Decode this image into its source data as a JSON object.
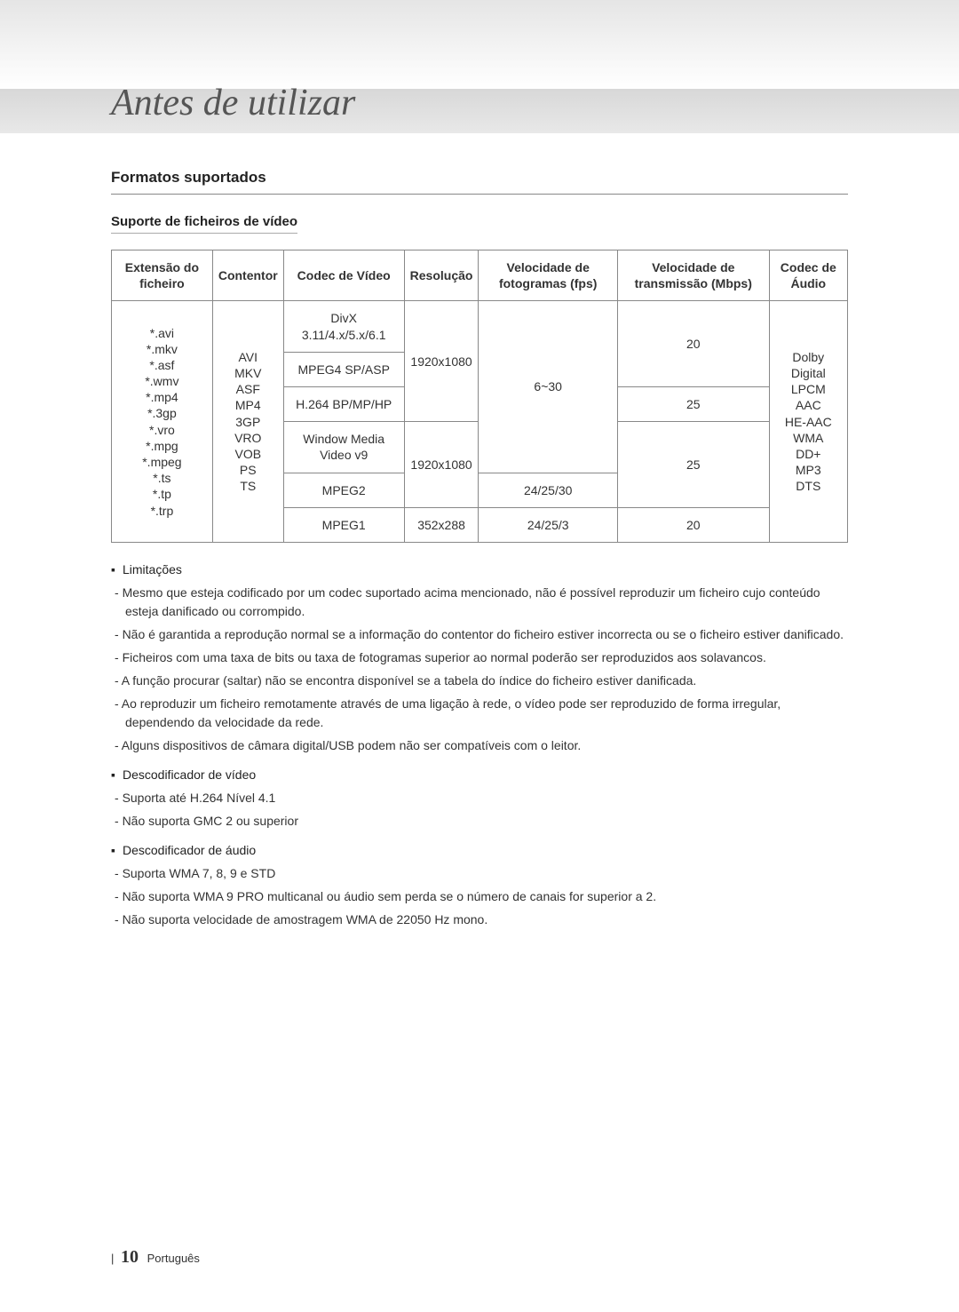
{
  "page_title": "Antes de utilizar",
  "section_title": "Formatos suportados",
  "subsection_title": "Suporte de ficheiros de vídeo",
  "table": {
    "headers": {
      "col1": "Extensão do ficheiro",
      "col2": "Contentor",
      "col3": "Codec de Vídeo",
      "col4": "Resolução",
      "col5": "Velocidade de fotogramas (fps)",
      "col6": "Velocidade de transmissão (Mbps)",
      "col7": "Codec de Áudio"
    },
    "col1_rows": [
      "*.avi",
      "*.mkv",
      "*.asf",
      "*.wmv",
      "*.mp4",
      "*.3gp",
      "*.vro",
      "*.mpg",
      "*.mpeg",
      "*.ts",
      "*.tp",
      "*.trp"
    ],
    "col2_rows": [
      "AVI",
      "MKV",
      "ASF",
      "MP4",
      "3GP",
      "VRO",
      "VOB",
      "PS",
      "TS"
    ],
    "col3_rows": [
      "DivX 3.11/4.x/5.x/6.1",
      "MPEG4 SP/ASP",
      "H.264 BP/MP/HP",
      "Window Media Video v9",
      "MPEG2",
      "MPEG1"
    ],
    "col4_rows": [
      "1920x1080",
      "1920x1080",
      "352x288"
    ],
    "col5_rows": [
      "6~30",
      "24/25/30",
      "24/25/3"
    ],
    "col6_rows": [
      "20",
      "25",
      "25",
      "20"
    ],
    "col7_rows": [
      "Dolby Digital",
      "LPCM",
      "AAC",
      "HE-AAC",
      "WMA",
      "DD+",
      "MP3",
      "DTS"
    ]
  },
  "limitations": {
    "heading": "Limitações",
    "items": [
      "Mesmo que esteja codificado por um codec suportado acima mencionado, não é possível reproduzir um ficheiro cujo conteúdo esteja danificado ou corrompido.",
      "Não é garantida a reprodução normal se a informação do contentor do ficheiro estiver incorrecta ou se o ficheiro estiver danificado.",
      "Ficheiros com uma taxa de bits ou taxa de fotogramas superior ao normal poderão ser reproduzidos aos solavancos.",
      "A função procurar (saltar) não se encontra disponível se a tabela do índice do ficheiro estiver danificada.",
      "Ao reproduzir um ficheiro remotamente através de uma ligação à rede, o vídeo pode ser reproduzido de forma irregular, dependendo da velocidade da rede.",
      "Alguns dispositivos de câmara digital/USB podem não ser compatíveis com o leitor."
    ]
  },
  "video_decoder": {
    "heading": "Descodificador de vídeo",
    "items": [
      "Suporta até H.264 Nível 4.1",
      "Não suporta GMC 2 ou superior"
    ]
  },
  "audio_decoder": {
    "heading": "Descodificador de áudio",
    "items": [
      "Suporta WMA 7, 8, 9 e STD",
      "Não suporta WMA 9 PRO multicanal ou áudio sem perda se o número de canais for superior a 2.",
      "Não suporta velocidade de amostragem WMA de 22050 Hz mono."
    ]
  },
  "footer": {
    "page_number": "10",
    "language": "Português"
  }
}
